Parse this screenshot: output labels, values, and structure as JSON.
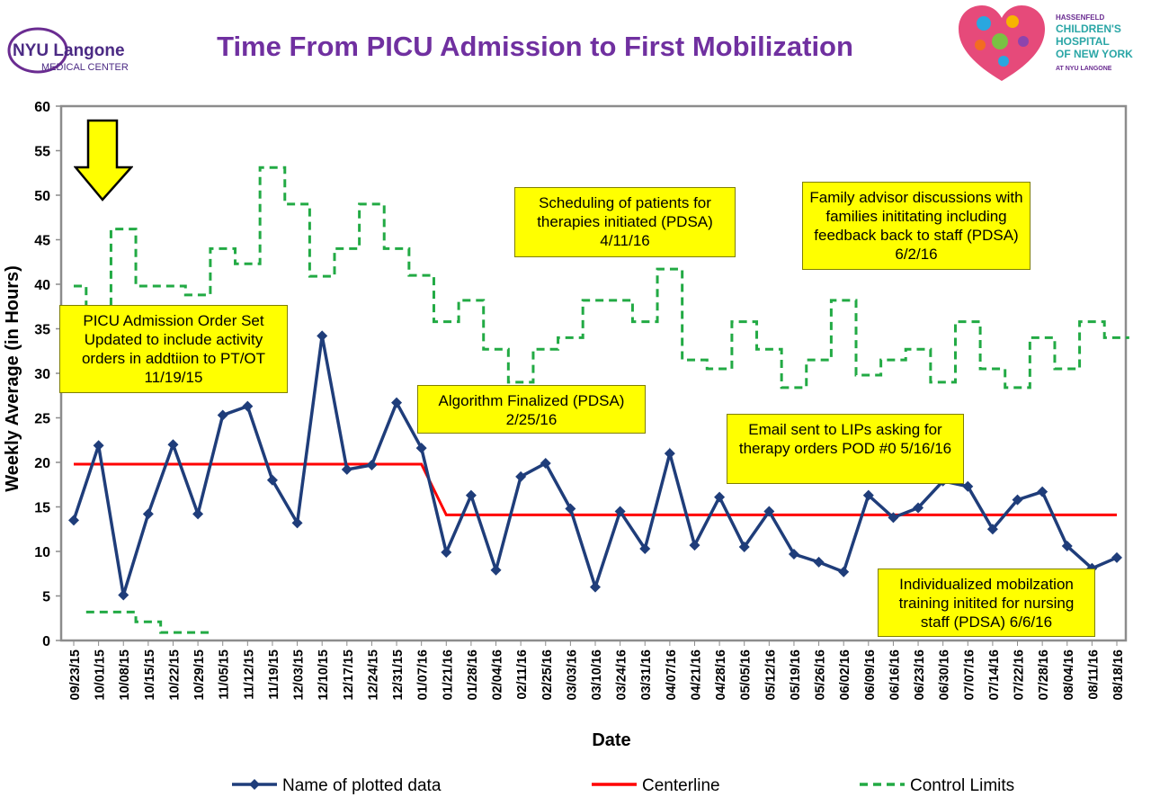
{
  "header": {
    "title": "Time From PICU Admission to First Mobilization",
    "logo_left": {
      "line1": "NYU Langone",
      "line2": "MEDICAL CENTER"
    },
    "logo_right": {
      "line1": "HASSENFELD",
      "line2": "CHILDREN'S",
      "line3": "HOSPITAL",
      "line4": "OF NEW YORK",
      "line5": "AT NYU LANGONE"
    }
  },
  "annotations": [
    {
      "text": "PICU Admission Order Set Updated to include activity orders in addtiion to PT/OT 11/19/15"
    },
    {
      "text": "Scheduling of patients for therapies initiated (PDSA) 4/11/16"
    },
    {
      "text": "Family advisor discussions with families inititating including feedback back to staff (PDSA) 6/2/16"
    },
    {
      "text": "Algorithm Finalized (PDSA) 2/25/16"
    },
    {
      "text": "Email sent to LIPs asking for therapy orders POD #0 5/16/16"
    },
    {
      "text": "Individualized mobilzation training initited for nursing staff (PDSA) 6/6/16"
    }
  ],
  "chart_data": {
    "type": "line",
    "title": "",
    "xlabel": "Date",
    "ylabel": "Weekly Average (in Hours)",
    "ylim": [
      0,
      60
    ],
    "yticks": [
      0,
      5,
      10,
      15,
      20,
      25,
      30,
      35,
      40,
      45,
      50,
      55,
      60
    ],
    "grid": false,
    "legend_position": "bottom",
    "categories": [
      "09/23/15",
      "10/01/15",
      "10/08/15",
      "10/15/15",
      "10/22/15",
      "10/29/15",
      "11/05/15",
      "11/12/15",
      "11/19/15",
      "12/03/15",
      "12/10/15",
      "12/17/15",
      "12/24/15",
      "12/31/15",
      "01/07/16",
      "01/21/16",
      "01/28/16",
      "02/04/16",
      "02/11/16",
      "02/25/16",
      "03/03/16",
      "03/10/16",
      "03/24/16",
      "03/31/16",
      "04/07/16",
      "04/21/16",
      "04/28/16",
      "05/05/16",
      "05/12/16",
      "05/19/16",
      "05/26/16",
      "06/02/16",
      "06/09/16",
      "06/16/16",
      "06/23/16",
      "06/30/16",
      "07/07/16",
      "07/14/16",
      "07/22/16",
      "07/28/16",
      "08/04/16",
      "08/11/16",
      "08/18/16"
    ],
    "series": [
      {
        "name": "Name of plotted data",
        "color": "#1f3d7a",
        "style": "line-diamond",
        "values": [
          13.5,
          21.9,
          5.1,
          14.2,
          22.0,
          14.2,
          25.3,
          26.3,
          18.0,
          13.2,
          34.2,
          19.2,
          19.7,
          26.7,
          21.6,
          9.9,
          16.3,
          7.9,
          18.4,
          19.9,
          14.8,
          6.0,
          14.5,
          10.3,
          21.0,
          10.7,
          16.1,
          10.5,
          14.5,
          9.7,
          8.8,
          7.7,
          16.3,
          13.8,
          14.9,
          17.9,
          17.3,
          12.5,
          15.8,
          16.7,
          10.6,
          8.1,
          9.3
        ]
      },
      {
        "name": "Centerline",
        "color": "#ff0000",
        "style": "line",
        "values": [
          19.8,
          19.8,
          19.8,
          19.8,
          19.8,
          19.8,
          19.8,
          19.8,
          19.8,
          19.8,
          19.8,
          19.8,
          19.8,
          19.8,
          19.8,
          14.1,
          14.1,
          14.1,
          14.1,
          14.1,
          14.1,
          14.1,
          14.1,
          14.1,
          14.1,
          14.1,
          14.1,
          14.1,
          14.1,
          14.1,
          14.1,
          14.1,
          14.1,
          14.1,
          14.1,
          14.1,
          14.1,
          14.1,
          14.1,
          14.1,
          14.1,
          14.1,
          14.1
        ]
      },
      {
        "name": "Control Limits",
        "color": "#22aa44",
        "style": "dashed-step",
        "values": [
          39.8,
          37.0,
          46.2,
          39.8,
          39.8,
          38.8,
          44.0,
          42.3,
          53.1,
          49.0,
          40.9,
          44.0,
          49.0,
          44.0,
          41.0,
          35.8,
          38.2,
          32.7,
          29.0,
          32.7,
          34.0,
          38.2,
          38.2,
          35.8,
          41.7,
          31.5,
          30.5,
          35.8,
          32.7,
          28.4,
          31.5,
          38.2,
          29.8,
          31.5,
          32.7,
          29.0,
          35.8,
          30.5,
          28.4,
          34.0,
          30.5,
          35.8,
          34.0
        ],
        "lower_values": [
          null,
          3.2,
          3.2,
          2.1,
          0.9,
          0.9,
          null,
          null,
          null,
          null,
          null,
          null,
          null,
          null,
          null,
          null,
          null,
          null,
          null,
          null,
          null,
          null,
          null,
          null,
          null,
          null,
          null,
          null,
          null,
          null,
          null,
          null,
          null,
          null,
          null,
          null,
          null,
          null,
          null,
          null,
          null,
          null,
          null
        ]
      }
    ],
    "colors": {
      "series": "#1f3d7a",
      "centerline": "#ff0000",
      "control": "#22aa44",
      "annotation": "#ffff00",
      "title": "#7030a0",
      "arrow": "#ffff00"
    }
  }
}
